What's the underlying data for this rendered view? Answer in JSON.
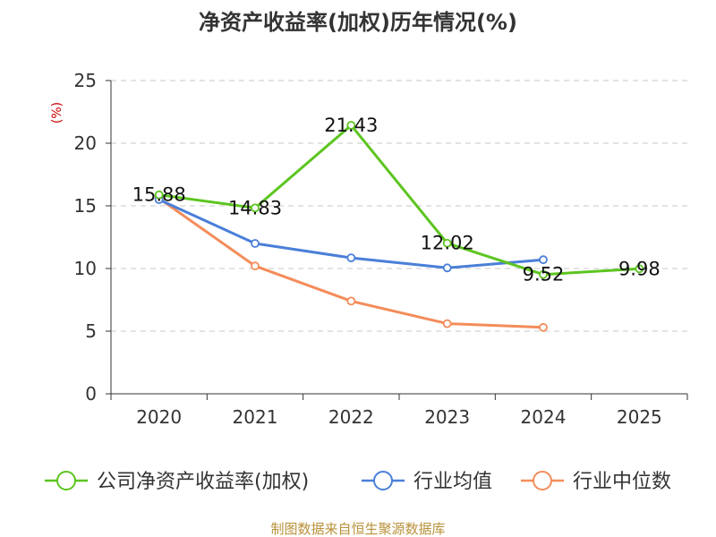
{
  "chart_data": {
    "type": "line",
    "title": "净资产收益率(加权)历年情况(%)",
    "xlabel": "",
    "ylabel": "(%)",
    "categories": [
      "2020",
      "2021",
      "2022",
      "2023",
      "2024",
      "2025"
    ],
    "ylim": [
      0,
      25
    ],
    "yticks": [
      "0",
      "5",
      "10",
      "15",
      "20",
      "25"
    ],
    "grid": true,
    "legend_position": "bottom",
    "series": [
      {
        "name": "公司净资产收益率(加权)",
        "color": "#5cc51f",
        "values": [
          15.88,
          14.83,
          21.43,
          12.02,
          9.52,
          9.98
        ],
        "labels": [
          "15.88",
          "14.83",
          "21.43",
          "12.02",
          "9.52",
          "9.98"
        ]
      },
      {
        "name": "行业均值",
        "color": "#4a7fd8",
        "values": [
          15.5,
          12.0,
          10.85,
          10.05,
          10.7,
          null
        ]
      },
      {
        "name": "行业中位数",
        "color": "#f48c5a",
        "values": [
          15.6,
          10.2,
          7.4,
          5.6,
          5.3,
          null
        ]
      }
    ],
    "source": "制图数据来自恒生聚源数据库"
  }
}
